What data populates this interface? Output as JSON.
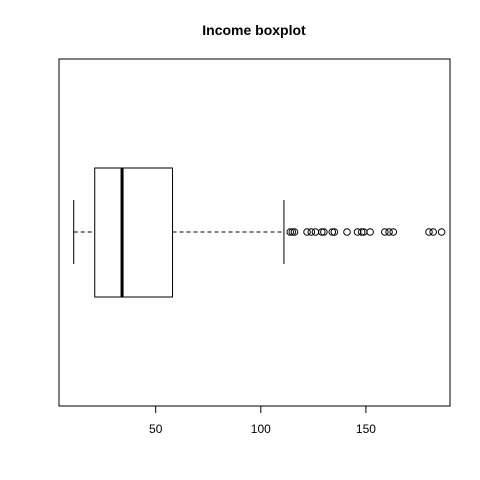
{
  "chart_data": {
    "type": "boxplot",
    "orientation": "horizontal",
    "title": "Income boxplot",
    "xlabel": "",
    "ylabel": "",
    "xlim": [
      4,
      190
    ],
    "x_ticks": [
      50,
      100,
      150
    ],
    "box": {
      "whisker_low": 11,
      "q1": 21,
      "median": 34,
      "q3": 58,
      "whisker_high": 111
    },
    "outliers": [
      114,
      115,
      116,
      122,
      124,
      126,
      129,
      130,
      134,
      135,
      141,
      146,
      148,
      149,
      152,
      159,
      161,
      163,
      180,
      182,
      186
    ],
    "grid": false,
    "legend": "none"
  }
}
